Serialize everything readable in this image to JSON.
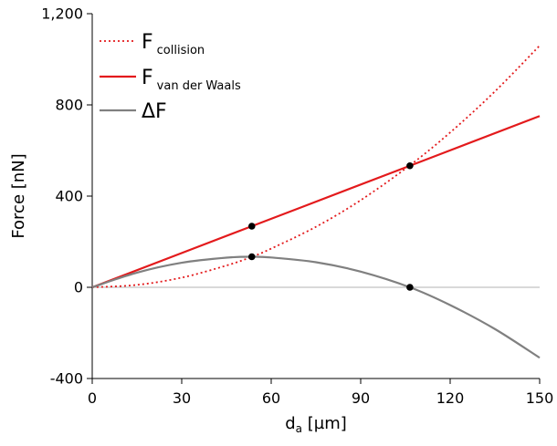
{
  "chart_data": {
    "type": "line",
    "title": "",
    "xlabel": {
      "main": "d",
      "sub": "a",
      "suffix": " [µm]"
    },
    "ylabel": "Force [nN]",
    "xlim": [
      0,
      150
    ],
    "ylim": [
      -400,
      1200
    ],
    "xticks": [
      0,
      30,
      60,
      90,
      120,
      150
    ],
    "xtick_labels": [
      "0",
      "30",
      "60",
      "90",
      "120",
      "150"
    ],
    "yticks": [
      -400,
      0,
      400,
      800,
      1200
    ],
    "ytick_labels": [
      "-400",
      "0",
      "400",
      "800",
      "1,200"
    ],
    "grid": false,
    "legend_position": "top-left",
    "zero_line": true,
    "series": [
      {
        "name": "F collision",
        "legend_main": "F",
        "legend_sub": "collision",
        "color": "#e31a1c",
        "style": "dotted",
        "x": [
          0,
          15,
          30,
          45,
          53.5,
          60,
          75,
          90,
          106.5,
          120,
          135,
          150
        ],
        "y": [
          0,
          10.6,
          42.4,
          95.5,
          133.6,
          169.8,
          265.3,
          382,
          535,
          679,
          859,
          1060
        ]
      },
      {
        "name": "F van der Waals",
        "legend_main": "F",
        "legend_sub": "van der Waals",
        "color": "#e31a1c",
        "style": "solid",
        "x": [
          0,
          53.5,
          106.5,
          150
        ],
        "y": [
          0,
          268,
          533,
          751
        ]
      },
      {
        "name": "ΔF",
        "legend_main": "ΔF",
        "legend_sub": "",
        "color": "#808080",
        "style": "solid",
        "x": [
          0,
          15,
          30,
          45,
          53.5,
          60,
          75,
          90,
          106.5,
          120,
          135,
          150
        ],
        "y": [
          0,
          64.5,
          107.8,
          130,
          134,
          130.7,
          110,
          68.7,
          0,
          -78,
          -183,
          -309
        ]
      }
    ],
    "markers": [
      {
        "x": 53.5,
        "y": 268
      },
      {
        "x": 53.5,
        "y": 134
      },
      {
        "x": 106.5,
        "y": 533
      },
      {
        "x": 106.5,
        "y": 0
      }
    ]
  }
}
